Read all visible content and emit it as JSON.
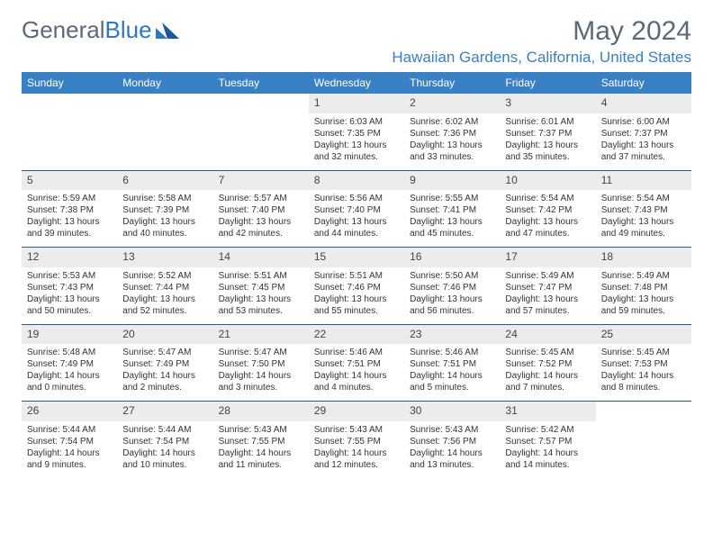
{
  "logo": {
    "text1": "General",
    "text2": "Blue"
  },
  "title": "May 2024",
  "location": "Hawaiian Gardens, California, United States",
  "dow": [
    "Sunday",
    "Monday",
    "Tuesday",
    "Wednesday",
    "Thursday",
    "Friday",
    "Saturday"
  ],
  "colors": {
    "header_bg": "#3a80c4",
    "header_fg": "#ffffff",
    "daynum_bg": "#ececec",
    "border": "#2b5a8a",
    "title_color": "#5a6a7a",
    "location_color": "#3a80c4"
  },
  "weeks": [
    [
      null,
      null,
      null,
      {
        "n": "1",
        "sr": "Sunrise: 6:03 AM",
        "ss": "Sunset: 7:35 PM",
        "dl1": "Daylight: 13 hours",
        "dl2": "and 32 minutes."
      },
      {
        "n": "2",
        "sr": "Sunrise: 6:02 AM",
        "ss": "Sunset: 7:36 PM",
        "dl1": "Daylight: 13 hours",
        "dl2": "and 33 minutes."
      },
      {
        "n": "3",
        "sr": "Sunrise: 6:01 AM",
        "ss": "Sunset: 7:37 PM",
        "dl1": "Daylight: 13 hours",
        "dl2": "and 35 minutes."
      },
      {
        "n": "4",
        "sr": "Sunrise: 6:00 AM",
        "ss": "Sunset: 7:37 PM",
        "dl1": "Daylight: 13 hours",
        "dl2": "and 37 minutes."
      }
    ],
    [
      {
        "n": "5",
        "sr": "Sunrise: 5:59 AM",
        "ss": "Sunset: 7:38 PM",
        "dl1": "Daylight: 13 hours",
        "dl2": "and 39 minutes."
      },
      {
        "n": "6",
        "sr": "Sunrise: 5:58 AM",
        "ss": "Sunset: 7:39 PM",
        "dl1": "Daylight: 13 hours",
        "dl2": "and 40 minutes."
      },
      {
        "n": "7",
        "sr": "Sunrise: 5:57 AM",
        "ss": "Sunset: 7:40 PM",
        "dl1": "Daylight: 13 hours",
        "dl2": "and 42 minutes."
      },
      {
        "n": "8",
        "sr": "Sunrise: 5:56 AM",
        "ss": "Sunset: 7:40 PM",
        "dl1": "Daylight: 13 hours",
        "dl2": "and 44 minutes."
      },
      {
        "n": "9",
        "sr": "Sunrise: 5:55 AM",
        "ss": "Sunset: 7:41 PM",
        "dl1": "Daylight: 13 hours",
        "dl2": "and 45 minutes."
      },
      {
        "n": "10",
        "sr": "Sunrise: 5:54 AM",
        "ss": "Sunset: 7:42 PM",
        "dl1": "Daylight: 13 hours",
        "dl2": "and 47 minutes."
      },
      {
        "n": "11",
        "sr": "Sunrise: 5:54 AM",
        "ss": "Sunset: 7:43 PM",
        "dl1": "Daylight: 13 hours",
        "dl2": "and 49 minutes."
      }
    ],
    [
      {
        "n": "12",
        "sr": "Sunrise: 5:53 AM",
        "ss": "Sunset: 7:43 PM",
        "dl1": "Daylight: 13 hours",
        "dl2": "and 50 minutes."
      },
      {
        "n": "13",
        "sr": "Sunrise: 5:52 AM",
        "ss": "Sunset: 7:44 PM",
        "dl1": "Daylight: 13 hours",
        "dl2": "and 52 minutes."
      },
      {
        "n": "14",
        "sr": "Sunrise: 5:51 AM",
        "ss": "Sunset: 7:45 PM",
        "dl1": "Daylight: 13 hours",
        "dl2": "and 53 minutes."
      },
      {
        "n": "15",
        "sr": "Sunrise: 5:51 AM",
        "ss": "Sunset: 7:46 PM",
        "dl1": "Daylight: 13 hours",
        "dl2": "and 55 minutes."
      },
      {
        "n": "16",
        "sr": "Sunrise: 5:50 AM",
        "ss": "Sunset: 7:46 PM",
        "dl1": "Daylight: 13 hours",
        "dl2": "and 56 minutes."
      },
      {
        "n": "17",
        "sr": "Sunrise: 5:49 AM",
        "ss": "Sunset: 7:47 PM",
        "dl1": "Daylight: 13 hours",
        "dl2": "and 57 minutes."
      },
      {
        "n": "18",
        "sr": "Sunrise: 5:49 AM",
        "ss": "Sunset: 7:48 PM",
        "dl1": "Daylight: 13 hours",
        "dl2": "and 59 minutes."
      }
    ],
    [
      {
        "n": "19",
        "sr": "Sunrise: 5:48 AM",
        "ss": "Sunset: 7:49 PM",
        "dl1": "Daylight: 14 hours",
        "dl2": "and 0 minutes."
      },
      {
        "n": "20",
        "sr": "Sunrise: 5:47 AM",
        "ss": "Sunset: 7:49 PM",
        "dl1": "Daylight: 14 hours",
        "dl2": "and 2 minutes."
      },
      {
        "n": "21",
        "sr": "Sunrise: 5:47 AM",
        "ss": "Sunset: 7:50 PM",
        "dl1": "Daylight: 14 hours",
        "dl2": "and 3 minutes."
      },
      {
        "n": "22",
        "sr": "Sunrise: 5:46 AM",
        "ss": "Sunset: 7:51 PM",
        "dl1": "Daylight: 14 hours",
        "dl2": "and 4 minutes."
      },
      {
        "n": "23",
        "sr": "Sunrise: 5:46 AM",
        "ss": "Sunset: 7:51 PM",
        "dl1": "Daylight: 14 hours",
        "dl2": "and 5 minutes."
      },
      {
        "n": "24",
        "sr": "Sunrise: 5:45 AM",
        "ss": "Sunset: 7:52 PM",
        "dl1": "Daylight: 14 hours",
        "dl2": "and 7 minutes."
      },
      {
        "n": "25",
        "sr": "Sunrise: 5:45 AM",
        "ss": "Sunset: 7:53 PM",
        "dl1": "Daylight: 14 hours",
        "dl2": "and 8 minutes."
      }
    ],
    [
      {
        "n": "26",
        "sr": "Sunrise: 5:44 AM",
        "ss": "Sunset: 7:54 PM",
        "dl1": "Daylight: 14 hours",
        "dl2": "and 9 minutes."
      },
      {
        "n": "27",
        "sr": "Sunrise: 5:44 AM",
        "ss": "Sunset: 7:54 PM",
        "dl1": "Daylight: 14 hours",
        "dl2": "and 10 minutes."
      },
      {
        "n": "28",
        "sr": "Sunrise: 5:43 AM",
        "ss": "Sunset: 7:55 PM",
        "dl1": "Daylight: 14 hours",
        "dl2": "and 11 minutes."
      },
      {
        "n": "29",
        "sr": "Sunrise: 5:43 AM",
        "ss": "Sunset: 7:55 PM",
        "dl1": "Daylight: 14 hours",
        "dl2": "and 12 minutes."
      },
      {
        "n": "30",
        "sr": "Sunrise: 5:43 AM",
        "ss": "Sunset: 7:56 PM",
        "dl1": "Daylight: 14 hours",
        "dl2": "and 13 minutes."
      },
      {
        "n": "31",
        "sr": "Sunrise: 5:42 AM",
        "ss": "Sunset: 7:57 PM",
        "dl1": "Daylight: 14 hours",
        "dl2": "and 14 minutes."
      },
      null
    ]
  ]
}
